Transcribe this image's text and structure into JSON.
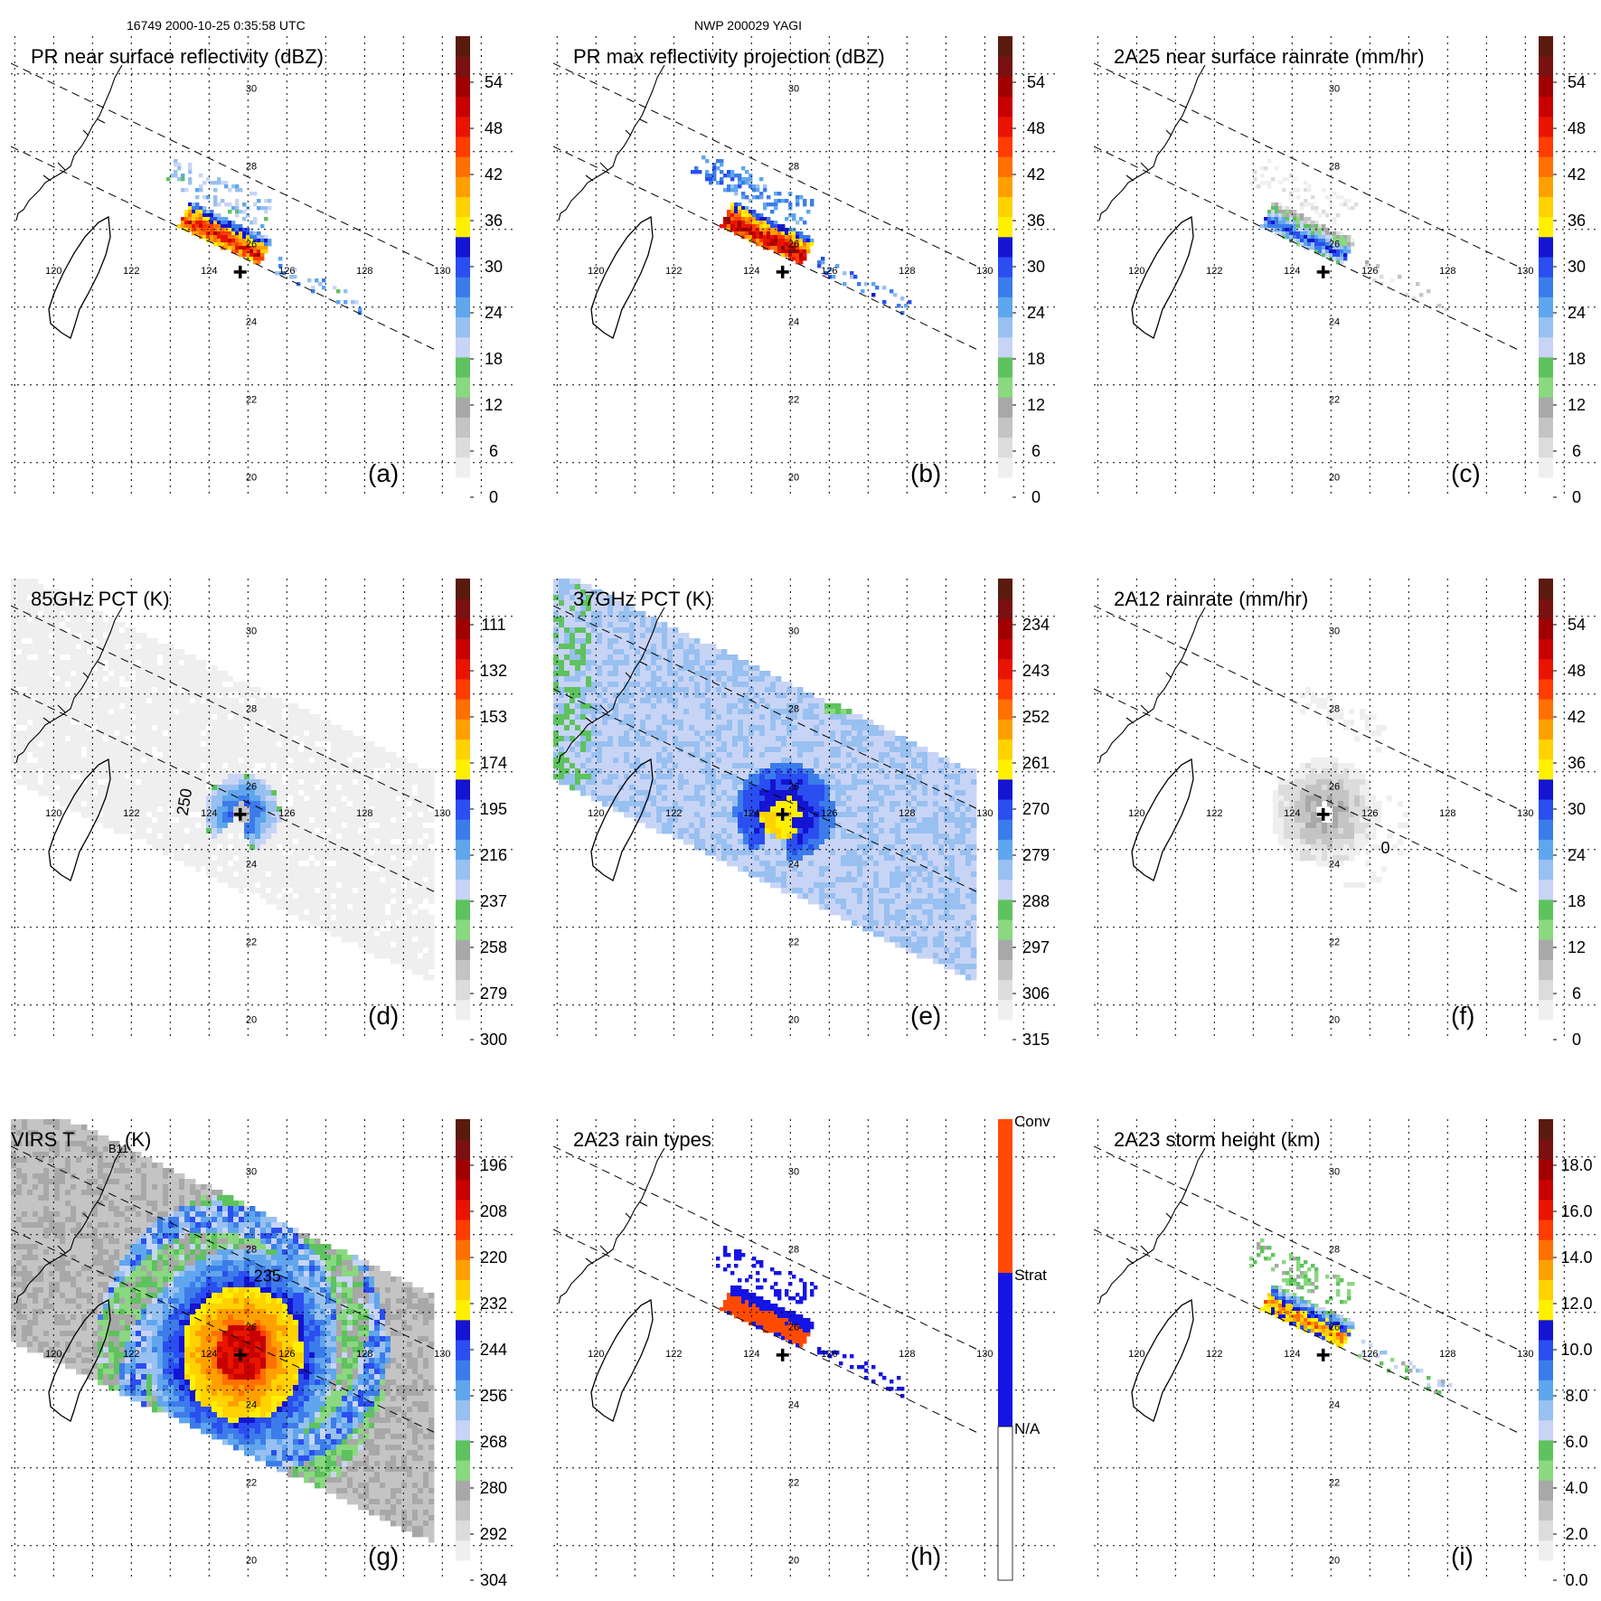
{
  "header": {
    "orbit_time": "16749 2000-10-25 0:35:58 UTC",
    "storm": "NWP 200029 YAGI"
  },
  "colors": {
    "colorbar": [
      "#ffffff",
      "#efefef",
      "#dcdcdc",
      "#c4c4c4",
      "#a8a8a8",
      "#8ad880",
      "#5ec25e",
      "#c8d4f5",
      "#98c0f0",
      "#5fa6ee",
      "#3c7cea",
      "#2a4ef0",
      "#1414d2",
      "#fff000",
      "#ffd200",
      "#ffa000",
      "#ff7000",
      "#ff3c00",
      "#e81400",
      "#c80000",
      "#a00000",
      "#7a1010",
      "#5a1a0e"
    ],
    "rain_types": [
      "#ffffff",
      "#1414e6",
      "#ff4a00"
    ]
  },
  "chart_data": [
    {
      "panel": "a",
      "type": "heatmap",
      "title": "PR near surface reflectivity (dBZ)",
      "field": "pr_surface",
      "colorbar": {
        "ticks": [
          "0",
          "6",
          "12",
          "18",
          "24",
          "30",
          "36",
          "42",
          "48",
          "54"
        ],
        "range": [
          0,
          60
        ]
      },
      "lon_ticks": [
        "120",
        "122",
        "124",
        "126",
        "128",
        "130"
      ],
      "lat_ticks": [
        "20",
        "22",
        "24",
        "26",
        "28",
        "30"
      ],
      "contour_label": ""
    },
    {
      "panel": "b",
      "type": "heatmap",
      "title": "PR max reflectivity projection (dBZ)",
      "field": "pr_max",
      "colorbar": {
        "ticks": [
          "0",
          "6",
          "12",
          "18",
          "24",
          "30",
          "36",
          "42",
          "48",
          "54"
        ],
        "range": [
          0,
          60
        ]
      },
      "lon_ticks": [
        "120",
        "122",
        "124",
        "126",
        "128",
        "130"
      ],
      "lat_ticks": [
        "20",
        "22",
        "24",
        "26",
        "28",
        "30"
      ],
      "contour_label": ""
    },
    {
      "panel": "c",
      "type": "heatmap",
      "title": "2A25 near surface rainrate (mm/hr)",
      "field": "rain_2a25",
      "colorbar": {
        "ticks": [
          "0",
          "6",
          "12",
          "18",
          "24",
          "30",
          "36",
          "42",
          "48",
          "54"
        ],
        "range": [
          0,
          60
        ]
      },
      "lon_ticks": [
        "120",
        "122",
        "124",
        "126",
        "128",
        "130"
      ],
      "lat_ticks": [
        "20",
        "22",
        "24",
        "26",
        "28",
        "30"
      ],
      "contour_label": ""
    },
    {
      "panel": "d",
      "type": "heatmap",
      "title": "85GHz PCT (K)",
      "field": "pct85",
      "colorbar": {
        "ticks": [
          "300",
          "279",
          "258",
          "237",
          "216",
          "195",
          "174",
          "153",
          "132",
          "111"
        ],
        "range": [
          300,
          90
        ]
      },
      "lon_ticks": [
        "120",
        "122",
        "124",
        "126",
        "128",
        "130"
      ],
      "lat_ticks": [
        "20",
        "22",
        "24",
        "26",
        "28",
        "30"
      ],
      "contour_label": "250"
    },
    {
      "panel": "e",
      "type": "heatmap",
      "title": "37GHz PCT (K)",
      "field": "pct37",
      "colorbar": {
        "ticks": [
          "315",
          "306",
          "297",
          "288",
          "279",
          "270",
          "261",
          "252",
          "243",
          "234"
        ],
        "range": [
          315,
          225
        ]
      },
      "lon_ticks": [
        "120",
        "122",
        "124",
        "126",
        "128",
        "130"
      ],
      "lat_ticks": [
        "20",
        "22",
        "24",
        "26",
        "28",
        "30"
      ],
      "contour_label": ""
    },
    {
      "panel": "f",
      "type": "heatmap",
      "title": "2A12 rainrate (mm/hr)",
      "field": "rain_2a12",
      "colorbar": {
        "ticks": [
          "0",
          "6",
          "12",
          "18",
          "24",
          "30",
          "36",
          "42",
          "48",
          "54"
        ],
        "range": [
          0,
          60
        ]
      },
      "lon_ticks": [
        "120",
        "122",
        "124",
        "126",
        "128",
        "130"
      ],
      "lat_ticks": [
        "20",
        "22",
        "24",
        "26",
        "28",
        "30"
      ],
      "contour_label": "0"
    },
    {
      "panel": "g",
      "type": "heatmap",
      "title": "VIRS T",
      "title_sub": "B11",
      "title_suffix": " (K)",
      "field": "virs",
      "colorbar": {
        "ticks": [
          "304",
          "292",
          "280",
          "268",
          "256",
          "244",
          "232",
          "220",
          "208",
          "196"
        ],
        "range": [
          304,
          184
        ]
      },
      "lon_ticks": [
        "120",
        "122",
        "124",
        "126",
        "128",
        "130"
      ],
      "lat_ticks": [
        "20",
        "22",
        "24",
        "26",
        "28",
        "30"
      ],
      "contour_label": "235"
    },
    {
      "panel": "h",
      "type": "heatmap",
      "title": "2A23 rain types",
      "field": "rain_types",
      "colorbar": {
        "categories": [
          "N/A",
          "Strat",
          "Conv"
        ]
      },
      "lon_ticks": [
        "120",
        "122",
        "124",
        "126",
        "128",
        "130"
      ],
      "lat_ticks": [
        "20",
        "22",
        "24",
        "26",
        "28",
        "30"
      ],
      "contour_label": ""
    },
    {
      "panel": "i",
      "type": "heatmap",
      "title": "2A23 storm height (km)",
      "field": "storm_height",
      "colorbar": {
        "ticks": [
          "0.0",
          "2.0",
          "4.0",
          "6.0",
          "8.0",
          "10.0",
          "12.0",
          "14.0",
          "16.0",
          "18.0"
        ],
        "range": [
          0,
          20
        ]
      },
      "lon_ticks": [
        "120",
        "122",
        "124",
        "126",
        "128",
        "130"
      ],
      "lat_ticks": [
        "20",
        "22",
        "24",
        "26",
        "28",
        "30"
      ],
      "contour_label": ""
    }
  ]
}
